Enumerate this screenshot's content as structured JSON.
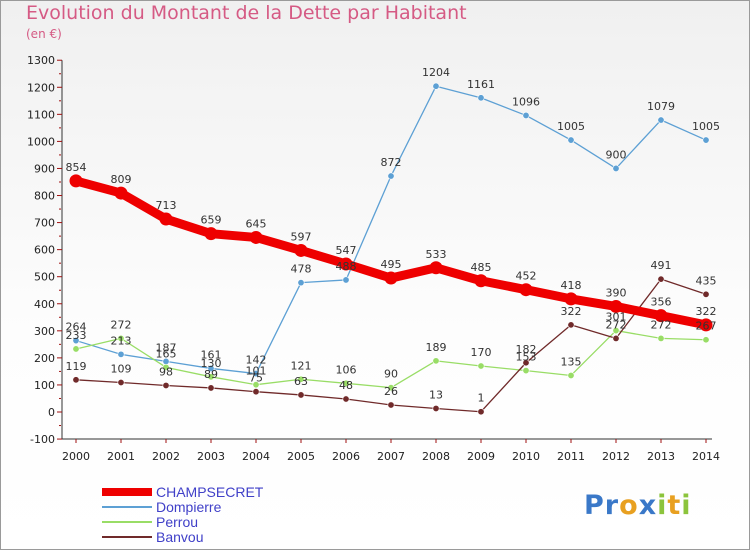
{
  "chart_data": {
    "type": "line",
    "title": "Evolution du Montant de la Dette par Habitant",
    "subtitle": "(en €)",
    "categories": [
      "2000",
      "2001",
      "2002",
      "2003",
      "2004",
      "2005",
      "2006",
      "2007",
      "2008",
      "2009",
      "2010",
      "2011",
      "2012",
      "2013",
      "2014"
    ],
    "ylim": [
      -100,
      1300
    ],
    "yticks": [
      -100,
      0,
      100,
      200,
      300,
      400,
      500,
      600,
      700,
      800,
      900,
      1000,
      1100,
      1200,
      1300
    ],
    "grid": false,
    "legend_position": "bottom-left",
    "series": [
      {
        "name": "CHAMPSECRET",
        "color": "#ee0000",
        "values": [
          854,
          809,
          713,
          659,
          645,
          597,
          547,
          495,
          533,
          485,
          452,
          418,
          390,
          356,
          322
        ]
      },
      {
        "name": "Dompierre",
        "color": "#5da0d4",
        "values": [
          264,
          213,
          187,
          161,
          142,
          478,
          488,
          872,
          1204,
          1161,
          1096,
          1005,
          900,
          1079,
          1005
        ]
      },
      {
        "name": "Perrou",
        "color": "#99dd66",
        "values": [
          233,
          272,
          165,
          130,
          101,
          121,
          106,
          90,
          189,
          170,
          153,
          135,
          301,
          272,
          267
        ]
      },
      {
        "name": "Banvou",
        "color": "#702a2a",
        "values": [
          119,
          109,
          98,
          89,
          75,
          63,
          48,
          26,
          13,
          1,
          182,
          322,
          272,
          491,
          435
        ]
      }
    ]
  },
  "logo": {
    "letters": [
      {
        "char": "P",
        "color": "#3a78c8"
      },
      {
        "char": "r",
        "color": "#3a78c8"
      },
      {
        "char": "o",
        "color": "#e8a020"
      },
      {
        "char": "x",
        "color": "#3a78c8"
      },
      {
        "char": "i",
        "color": "#8cc43c"
      },
      {
        "char": "t",
        "color": "#e8a020"
      },
      {
        "char": "i",
        "color": "#8cc43c"
      }
    ]
  }
}
